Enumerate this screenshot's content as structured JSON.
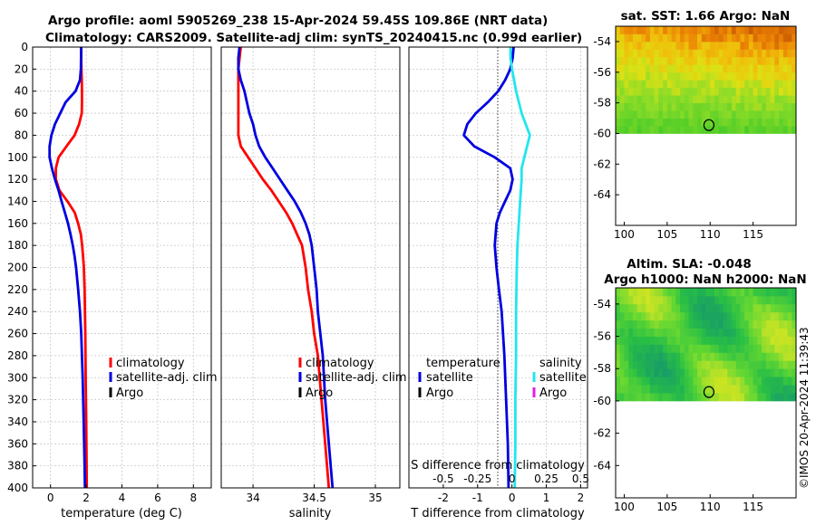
{
  "header": {
    "line1": "Argo profile: aoml 5905269_238 15-Apr-2024 59.45S 109.86E (NRT data)",
    "line2": "Climatology: CARS2009. Satellite-adj clim: synTS_20240415.nc (0.99d earlier)"
  },
  "credit": "©IMOS 20-Apr-2024 11:39:43",
  "colors": {
    "climatology": "#ff0000",
    "satellite_adj": "#0000e0",
    "argo": "#000000",
    "sal_satellite": "#22e6ee",
    "sal_argo": "#e21ee2"
  },
  "chart_data": [
    {
      "id": "temperature",
      "type": "line",
      "xlabel": "temperature (deg C)",
      "xlim": [
        -1,
        9
      ],
      "xticks": [
        0,
        2,
        4,
        6,
        8
      ],
      "xtick_labels": [
        "0",
        "2",
        "4",
        "6",
        "8"
      ],
      "ylim": [
        400,
        0
      ],
      "yticks": [
        0,
        20,
        40,
        60,
        80,
        100,
        120,
        140,
        160,
        180,
        200,
        220,
        240,
        260,
        280,
        300,
        320,
        340,
        360,
        380,
        400
      ],
      "ytick_labels": [
        "0",
        "20",
        "40",
        "60",
        "80",
        "100",
        "120",
        "140",
        "160",
        "180",
        "200",
        "220",
        "240",
        "260",
        "280",
        "300",
        "320",
        "340",
        "360",
        "380",
        "400"
      ],
      "legend": [
        "climatology",
        "satellite-adj. clim",
        "Argo"
      ],
      "series": [
        {
          "name": "climatology",
          "color_key": "climatology",
          "points": [
            [
              1.72,
              0
            ],
            [
              1.72,
              10
            ],
            [
              1.73,
              20
            ],
            [
              1.75,
              30
            ],
            [
              1.76,
              40
            ],
            [
              1.76,
              50
            ],
            [
              1.75,
              60
            ],
            [
              1.6,
              70
            ],
            [
              1.35,
              80
            ],
            [
              0.9,
              90
            ],
            [
              0.45,
              100
            ],
            [
              0.3,
              110
            ],
            [
              0.3,
              120
            ],
            [
              0.5,
              130
            ],
            [
              0.95,
              140
            ],
            [
              1.35,
              150
            ],
            [
              1.55,
              160
            ],
            [
              1.7,
              170
            ],
            [
              1.77,
              180
            ],
            [
              1.82,
              190
            ],
            [
              1.87,
              200
            ],
            [
              1.91,
              220
            ],
            [
              1.93,
              240
            ],
            [
              1.95,
              260
            ],
            [
              1.97,
              300
            ],
            [
              2.0,
              340
            ],
            [
              2.02,
              380
            ],
            [
              2.03,
              400
            ]
          ]
        },
        {
          "name": "satellite-adj. clim",
          "color_key": "satellite_adj",
          "points": [
            [
              1.72,
              0
            ],
            [
              1.71,
              10
            ],
            [
              1.7,
              20
            ],
            [
              1.65,
              30
            ],
            [
              1.4,
              40
            ],
            [
              0.85,
              50
            ],
            [
              0.55,
              60
            ],
            [
              0.25,
              70
            ],
            [
              0.05,
              80
            ],
            [
              -0.05,
              90
            ],
            [
              -0.05,
              100
            ],
            [
              0.08,
              110
            ],
            [
              0.25,
              120
            ],
            [
              0.45,
              130
            ],
            [
              0.62,
              140
            ],
            [
              0.8,
              150
            ],
            [
              0.98,
              160
            ],
            [
              1.12,
              170
            ],
            [
              1.25,
              180
            ],
            [
              1.35,
              190
            ],
            [
              1.43,
              200
            ],
            [
              1.55,
              220
            ],
            [
              1.65,
              240
            ],
            [
              1.72,
              260
            ],
            [
              1.8,
              300
            ],
            [
              1.86,
              340
            ],
            [
              1.91,
              380
            ],
            [
              1.93,
              400
            ]
          ]
        }
      ]
    },
    {
      "id": "salinity",
      "type": "line",
      "xlabel": "salinity",
      "xlim": [
        33.74,
        35.2
      ],
      "xticks": [
        34,
        34.5,
        35
      ],
      "xtick_labels": [
        "34",
        "34.5",
        "35"
      ],
      "ylim": [
        400,
        0
      ],
      "legend": [
        "climatology",
        "satellite-adj. clim",
        "Argo"
      ],
      "series": [
        {
          "name": "climatology",
          "color_key": "climatology",
          "points": [
            [
              33.9,
              0
            ],
            [
              33.89,
              10
            ],
            [
              33.88,
              20
            ],
            [
              33.88,
              40
            ],
            [
              33.88,
              60
            ],
            [
              33.88,
              80
            ],
            [
              33.9,
              90
            ],
            [
              33.96,
              100
            ],
            [
              34.02,
              110
            ],
            [
              34.08,
              120
            ],
            [
              34.15,
              130
            ],
            [
              34.21,
              140
            ],
            [
              34.27,
              150
            ],
            [
              34.32,
              160
            ],
            [
              34.36,
              170
            ],
            [
              34.4,
              180
            ],
            [
              34.43,
              200
            ],
            [
              34.45,
              220
            ],
            [
              34.48,
              240
            ],
            [
              34.5,
              260
            ],
            [
              34.53,
              280
            ],
            [
              34.56,
              320
            ],
            [
              34.59,
              360
            ],
            [
              34.62,
              400
            ]
          ]
        },
        {
          "name": "satellite-adj. clim",
          "color_key": "satellite_adj",
          "points": [
            [
              33.89,
              0
            ],
            [
              33.88,
              10
            ],
            [
              33.88,
              20
            ],
            [
              33.9,
              30
            ],
            [
              33.93,
              40
            ],
            [
              33.95,
              50
            ],
            [
              33.97,
              60
            ],
            [
              34.0,
              70
            ],
            [
              34.02,
              80
            ],
            [
              34.05,
              90
            ],
            [
              34.1,
              100
            ],
            [
              34.16,
              110
            ],
            [
              34.22,
              120
            ],
            [
              34.28,
              130
            ],
            [
              34.34,
              140
            ],
            [
              34.39,
              150
            ],
            [
              34.43,
              160
            ],
            [
              34.46,
              170
            ],
            [
              34.48,
              180
            ],
            [
              34.5,
              200
            ],
            [
              34.52,
              220
            ],
            [
              34.53,
              240
            ],
            [
              34.55,
              260
            ],
            [
              34.57,
              280
            ],
            [
              34.59,
              320
            ],
            [
              34.62,
              360
            ],
            [
              34.65,
              400
            ]
          ]
        }
      ]
    },
    {
      "id": "differences",
      "type": "line",
      "xlabel": "T difference from climatology",
      "xlim": [
        -3,
        2.2
      ],
      "xticks": [
        -2,
        -1,
        0,
        1,
        2
      ],
      "xtick_labels": [
        "-2",
        "-1",
        "0",
        "1",
        "2"
      ],
      "secondary_xlabel": "S difference from climatology",
      "secondary_xticks": [
        -0.5,
        -0.25,
        0,
        0.25,
        0.5
      ],
      "secondary_xtick_labels": [
        "-0.5",
        "-0.25",
        "0",
        "0.25",
        "0.5"
      ],
      "secondary_xlim": [
        -0.75,
        0.55
      ],
      "ylim": [
        400,
        0
      ],
      "legend_temperature": {
        "title": "temperature",
        "items": [
          "satellite",
          "Argo"
        ]
      },
      "legend_salinity": {
        "title": "salinity",
        "items": [
          "satellite",
          "Argo"
        ]
      },
      "series": [
        {
          "name": "T satellite",
          "color_key": "satellite_adj",
          "axis": "T",
          "points": [
            [
              0.05,
              0
            ],
            [
              0.02,
              10
            ],
            [
              -0.05,
              20
            ],
            [
              -0.2,
              30
            ],
            [
              -0.4,
              40
            ],
            [
              -0.7,
              50
            ],
            [
              -1.05,
              60
            ],
            [
              -1.3,
              70
            ],
            [
              -1.4,
              80
            ],
            [
              -1.1,
              90
            ],
            [
              -0.5,
              100
            ],
            [
              -0.05,
              110
            ],
            [
              0.02,
              120
            ],
            [
              -0.05,
              130
            ],
            [
              -0.2,
              140
            ],
            [
              -0.35,
              150
            ],
            [
              -0.45,
              160
            ],
            [
              -0.5,
              180
            ],
            [
              -0.45,
              200
            ],
            [
              -0.38,
              220
            ],
            [
              -0.3,
              240
            ],
            [
              -0.22,
              280
            ],
            [
              -0.17,
              320
            ],
            [
              -0.12,
              360
            ],
            [
              -0.1,
              400
            ]
          ]
        },
        {
          "name": "S satellite",
          "color_key": "sal_satellite",
          "axis": "S",
          "points": [
            [
              -0.01,
              0
            ],
            [
              -0.01,
              10
            ],
            [
              0.0,
              20
            ],
            [
              0.03,
              40
            ],
            [
              0.07,
              60
            ],
            [
              0.13,
              80
            ],
            [
              0.11,
              90
            ],
            [
              0.09,
              100
            ],
            [
              0.07,
              110
            ],
            [
              0.07,
              120
            ],
            [
              0.06,
              140
            ],
            [
              0.05,
              160
            ],
            [
              0.04,
              180
            ],
            [
              0.035,
              200
            ],
            [
              0.03,
              240
            ],
            [
              0.03,
              280
            ],
            [
              0.025,
              320
            ],
            [
              0.025,
              360
            ],
            [
              0.02,
              400
            ]
          ]
        }
      ]
    },
    {
      "id": "sst_map",
      "type": "heatmap",
      "title": "sat. SST: 1.66 Argo: NaN",
      "xlim": [
        99,
        120
      ],
      "ylim": [
        -66,
        -53
      ],
      "xticks": [
        100,
        105,
        110,
        115
      ],
      "xtick_labels": [
        "100",
        "105",
        "110",
        "115"
      ],
      "yticks": [
        -54,
        -56,
        -58,
        -60,
        -62,
        -64
      ],
      "ytick_labels": [
        "-54",
        "-56",
        "-58",
        "-60",
        "-62",
        "-64"
      ],
      "data_lat_range": [
        -60,
        -53
      ],
      "marker": [
        109.86,
        -59.45
      ]
    },
    {
      "id": "sla_map",
      "type": "heatmap",
      "title_line1": "Altim. SLA: -0.048",
      "title_line2": "Argo h1000: NaN h2000: NaN",
      "xlim": [
        99,
        120
      ],
      "ylim": [
        -66,
        -53
      ],
      "xticks": [
        100,
        105,
        110,
        115
      ],
      "xtick_labels": [
        "100",
        "105",
        "110",
        "115"
      ],
      "yticks": [
        -54,
        -56,
        -58,
        -60,
        -62,
        -64
      ],
      "ytick_labels": [
        "-54",
        "-56",
        "-58",
        "-60",
        "-62",
        "-64"
      ],
      "data_lat_range": [
        -60,
        -53
      ],
      "marker": [
        109.86,
        -59.45
      ]
    }
  ]
}
